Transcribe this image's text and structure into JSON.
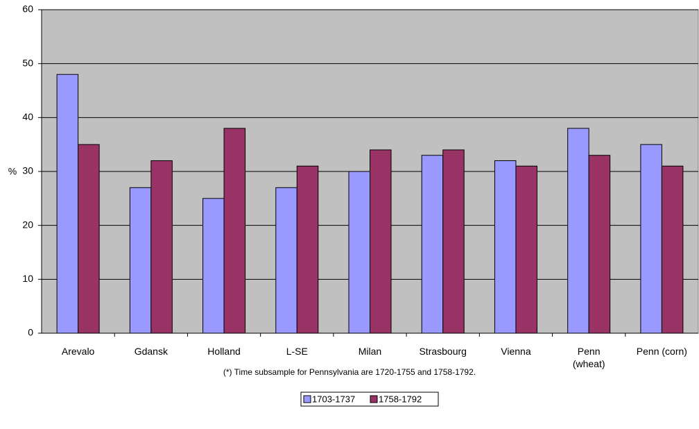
{
  "chart_data": {
    "type": "bar",
    "y_label": "%",
    "categories": [
      "Arevalo",
      "Gdansk",
      "Holland",
      "L-SE",
      "Milan",
      "Strasbourg",
      "Vienna",
      "Penn (wheat)",
      "Penn (corn)"
    ],
    "series": [
      {
        "name": "1703-1737",
        "color": "#9999ff",
        "values": [
          48,
          27,
          25,
          27,
          30,
          33,
          32,
          38,
          35
        ]
      },
      {
        "name": "1758-1792",
        "color": "#993366",
        "values": [
          35,
          32,
          38,
          31,
          34,
          34,
          31,
          33,
          31
        ]
      }
    ],
    "ylim": [
      0,
      60
    ],
    "yticks": [
      0,
      10,
      20,
      30,
      40,
      50,
      60
    ],
    "grid": true,
    "plot_background": "#c0c0c0",
    "note": "(*) Time subsample for Pennsylvania are 1720-1755 and 1758-1792.",
    "legend": "bottom"
  }
}
